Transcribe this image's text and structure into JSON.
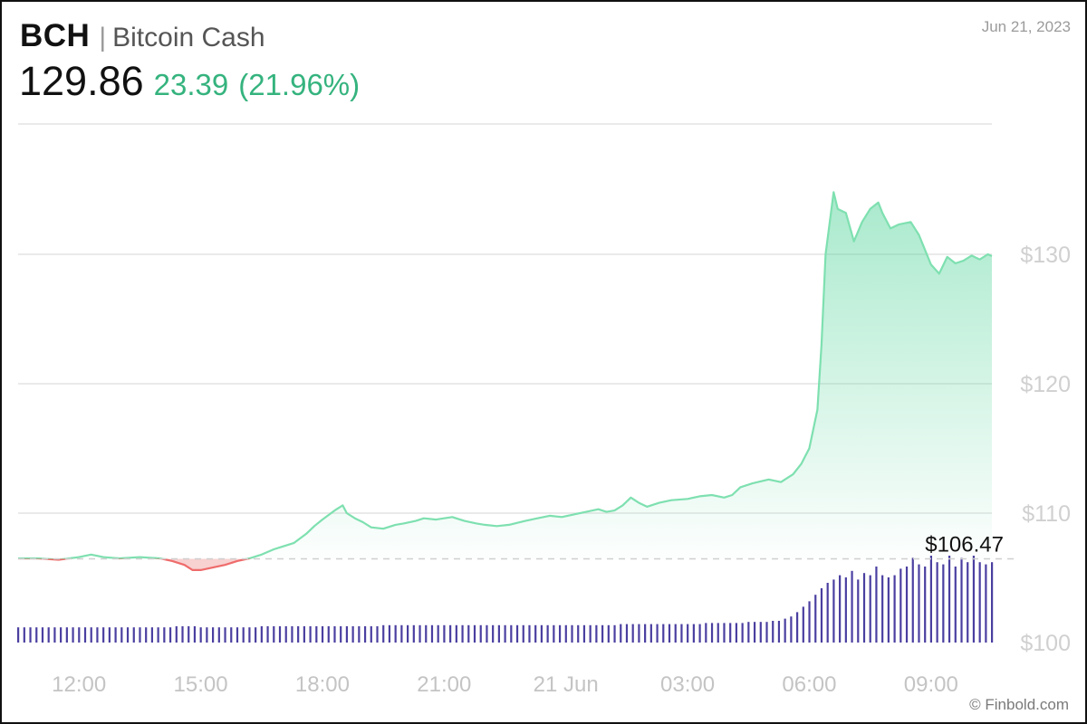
{
  "header": {
    "ticker": "BCH",
    "separator": "|",
    "name": "Bitcoin Cash",
    "date": "Jun 21, 2023",
    "price": "129.86",
    "change": "23.39",
    "change_pct": "(21.96%)"
  },
  "credit": "© Finbold.com",
  "colors": {
    "up": "#35b37e",
    "up_line": "#7ee0b0",
    "down_line": "#ef6b6b",
    "down_fill": "#f7c9c9",
    "volume": "#4a3fa0",
    "grid": "#e4e4e4"
  },
  "chart_data": {
    "type": "line",
    "title": "",
    "xlabel": "",
    "ylabel": "",
    "ylim": [
      100,
      140
    ],
    "yticks": [
      {
        "value": 100,
        "label": "$100"
      },
      {
        "value": 110,
        "label": "$110"
      },
      {
        "value": 120,
        "label": "$120"
      },
      {
        "value": 130,
        "label": "$130"
      }
    ],
    "xticks": [
      {
        "hour": 12,
        "label": "12:00"
      },
      {
        "hour": 15,
        "label": "15:00"
      },
      {
        "hour": 18,
        "label": "18:00"
      },
      {
        "hour": 21,
        "label": "21:00"
      },
      {
        "hour": 24,
        "label": "21 Jun"
      },
      {
        "hour": 27,
        "label": "03:00"
      },
      {
        "hour": 30,
        "label": "06:00"
      },
      {
        "hour": 33,
        "label": "09:00"
      }
    ],
    "xlim_hours": [
      10.5,
      34.5
    ],
    "baseline": {
      "value": 106.47,
      "label": "$106.47"
    },
    "series": [
      {
        "points": [
          [
            10.5,
            106.5
          ],
          [
            11.0,
            106.5
          ],
          [
            11.5,
            106.4
          ],
          [
            12.0,
            106.6
          ],
          [
            12.3,
            106.8
          ],
          [
            12.6,
            106.6
          ],
          [
            13.0,
            106.5
          ],
          [
            13.5,
            106.6
          ],
          [
            14.0,
            106.5
          ],
          [
            14.3,
            106.3
          ],
          [
            14.6,
            106.0
          ],
          [
            14.8,
            105.6
          ],
          [
            15.0,
            105.6
          ],
          [
            15.3,
            105.8
          ],
          [
            15.6,
            106.0
          ],
          [
            15.9,
            106.3
          ],
          [
            16.2,
            106.5
          ],
          [
            16.5,
            106.8
          ],
          [
            16.8,
            107.2
          ],
          [
            17.0,
            107.4
          ],
          [
            17.3,
            107.7
          ],
          [
            17.6,
            108.4
          ],
          [
            17.8,
            109.0
          ],
          [
            18.0,
            109.5
          ],
          [
            18.3,
            110.2
          ],
          [
            18.5,
            110.6
          ],
          [
            18.6,
            110.0
          ],
          [
            18.8,
            109.6
          ],
          [
            19.0,
            109.3
          ],
          [
            19.2,
            108.9
          ],
          [
            19.5,
            108.8
          ],
          [
            19.8,
            109.1
          ],
          [
            20.0,
            109.2
          ],
          [
            20.3,
            109.4
          ],
          [
            20.5,
            109.6
          ],
          [
            20.8,
            109.5
          ],
          [
            21.0,
            109.6
          ],
          [
            21.2,
            109.7
          ],
          [
            21.5,
            109.4
          ],
          [
            21.8,
            109.2
          ],
          [
            22.0,
            109.1
          ],
          [
            22.3,
            109.0
          ],
          [
            22.6,
            109.1
          ],
          [
            23.0,
            109.4
          ],
          [
            23.3,
            109.6
          ],
          [
            23.6,
            109.8
          ],
          [
            23.9,
            109.7
          ],
          [
            24.2,
            109.9
          ],
          [
            24.5,
            110.1
          ],
          [
            24.8,
            110.3
          ],
          [
            25.0,
            110.1
          ],
          [
            25.2,
            110.2
          ],
          [
            25.4,
            110.6
          ],
          [
            25.6,
            111.2
          ],
          [
            25.8,
            110.8
          ],
          [
            26.0,
            110.5
          ],
          [
            26.3,
            110.8
          ],
          [
            26.6,
            111.0
          ],
          [
            27.0,
            111.1
          ],
          [
            27.3,
            111.3
          ],
          [
            27.6,
            111.4
          ],
          [
            27.9,
            111.2
          ],
          [
            28.1,
            111.4
          ],
          [
            28.3,
            112.0
          ],
          [
            28.6,
            112.3
          ],
          [
            29.0,
            112.6
          ],
          [
            29.3,
            112.4
          ],
          [
            29.6,
            113.0
          ],
          [
            29.8,
            113.8
          ],
          [
            30.0,
            115.0
          ],
          [
            30.2,
            118.0
          ],
          [
            30.3,
            123.0
          ],
          [
            30.4,
            130.0
          ],
          [
            30.6,
            134.8
          ],
          [
            30.7,
            133.5
          ],
          [
            30.9,
            133.2
          ],
          [
            31.1,
            131.0
          ],
          [
            31.3,
            132.5
          ],
          [
            31.5,
            133.5
          ],
          [
            31.7,
            134.0
          ],
          [
            31.8,
            133.2
          ],
          [
            32.0,
            132.0
          ],
          [
            32.2,
            132.3
          ],
          [
            32.5,
            132.5
          ],
          [
            32.7,
            131.5
          ],
          [
            33.0,
            129.2
          ],
          [
            33.2,
            128.5
          ],
          [
            33.4,
            129.8
          ],
          [
            33.6,
            129.3
          ],
          [
            33.8,
            129.5
          ],
          [
            34.0,
            129.9
          ],
          [
            34.2,
            129.6
          ],
          [
            34.4,
            130.0
          ],
          [
            34.5,
            129.86
          ]
        ]
      }
    ],
    "volume": {
      "x_range_hours": [
        10.5,
        34.5
      ],
      "bar_count": 161,
      "relative_levels": [
        0.14,
        0.14,
        0.14,
        0.14,
        0.14,
        0.14,
        0.14,
        0.14,
        0.14,
        0.14,
        0.14,
        0.14,
        0.14,
        0.14,
        0.14,
        0.14,
        0.14,
        0.14,
        0.14,
        0.14,
        0.14,
        0.14,
        0.14,
        0.14,
        0.14,
        0.14,
        0.15,
        0.15,
        0.15,
        0.15,
        0.14,
        0.14,
        0.14,
        0.14,
        0.14,
        0.14,
        0.14,
        0.14,
        0.14,
        0.14,
        0.15,
        0.15,
        0.15,
        0.15,
        0.15,
        0.15,
        0.15,
        0.15,
        0.15,
        0.15,
        0.15,
        0.15,
        0.15,
        0.15,
        0.15,
        0.15,
        0.15,
        0.15,
        0.15,
        0.15,
        0.16,
        0.16,
        0.16,
        0.16,
        0.16,
        0.16,
        0.16,
        0.16,
        0.16,
        0.16,
        0.16,
        0.16,
        0.16,
        0.16,
        0.16,
        0.16,
        0.16,
        0.16,
        0.16,
        0.16,
        0.16,
        0.16,
        0.16,
        0.16,
        0.16,
        0.16,
        0.16,
        0.16,
        0.16,
        0.16,
        0.16,
        0.16,
        0.16,
        0.16,
        0.16,
        0.16,
        0.16,
        0.16,
        0.16,
        0.17,
        0.17,
        0.17,
        0.17,
        0.17,
        0.17,
        0.17,
        0.17,
        0.17,
        0.17,
        0.17,
        0.17,
        0.17,
        0.17,
        0.18,
        0.18,
        0.18,
        0.18,
        0.18,
        0.18,
        0.18,
        0.19,
        0.19,
        0.19,
        0.19,
        0.2,
        0.2,
        0.22,
        0.24,
        0.28,
        0.33,
        0.38,
        0.44,
        0.5,
        0.55,
        0.58,
        0.62,
        0.6,
        0.66,
        0.58,
        0.64,
        0.62,
        0.7,
        0.62,
        0.6,
        0.62,
        0.68,
        0.7,
        0.78,
        0.72,
        0.7,
        0.8,
        0.74,
        0.72,
        0.8,
        0.7,
        0.78,
        0.74,
        0.8,
        0.74,
        0.72,
        0.74
      ]
    }
  }
}
